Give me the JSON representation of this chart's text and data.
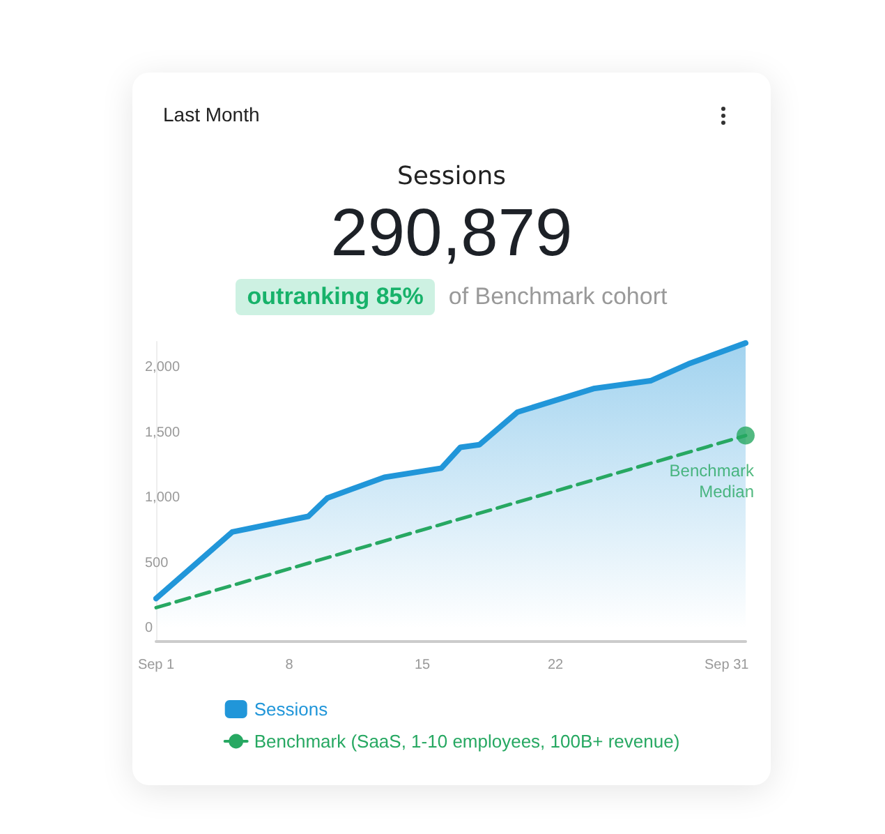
{
  "chart_data": {
    "type": "area",
    "title": "Last Month",
    "subtitle": "Sessions",
    "annotations": [
      "290,879",
      "outranking 85%",
      "of Benchmark cohort",
      {
        "text": "Benchmark Median",
        "x": 32,
        "y": 1480
      }
    ],
    "xlim": [
      1,
      32
    ],
    "xticks": [
      {
        "value": 1,
        "label": "Sep 1"
      },
      8,
      15,
      22,
      {
        "value": 31,
        "label": "Sep 31"
      }
    ],
    "ylim": [
      -100,
      2200
    ],
    "yticks": [
      0,
      500,
      {
        "value": 1000,
        "label": "1,000"
      },
      {
        "value": 1500,
        "label": "1,500"
      },
      {
        "value": 2000,
        "label": "2,000"
      }
    ],
    "grid": false,
    "legend": "bottom",
    "series": [
      {
        "name": "Sessions",
        "color": "#2196d9",
        "x": [
          1,
          5,
          9,
          10,
          13,
          16,
          17,
          18,
          20,
          22,
          24,
          27,
          29,
          32
        ],
        "values": [
          230,
          740,
          860,
          1000,
          1160,
          1230,
          1390,
          1410,
          1660,
          1750,
          1840,
          1900,
          2030,
          2190
        ]
      },
      {
        "name": "Benchmark (SaaS, 1-10 employees, 100B+ revenue)",
        "type": "line",
        "line_style": "dashed",
        "color": "#27a862",
        "x": [
          1,
          32
        ],
        "values": [
          160,
          1480
        ]
      }
    ]
  }
}
